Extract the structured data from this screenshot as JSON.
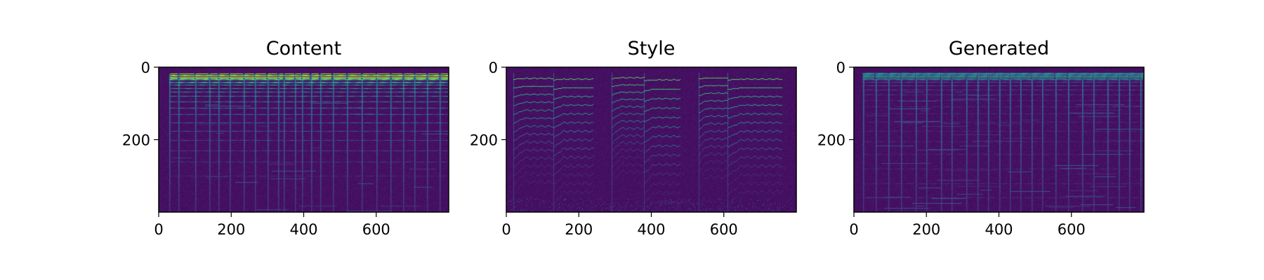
{
  "colormap": {
    "name": "viridis",
    "background": "#440154",
    "stops": [
      "#440154",
      "#472c7a",
      "#3b528b",
      "#2c728e",
      "#21918c",
      "#28ae80",
      "#5ec962",
      "#addc30",
      "#fde725"
    ]
  },
  "chart_data": [
    {
      "type": "heatmap",
      "title": "Content",
      "xlim": [
        0,
        800
      ],
      "ylim": [
        400,
        0
      ],
      "xticks": [
        0,
        200,
        400,
        600
      ],
      "yticks": [
        0,
        200
      ],
      "pattern": "broadband",
      "harmonics": [
        22,
        27,
        33,
        40,
        48,
        58,
        68,
        80,
        95,
        112,
        130,
        152,
        175,
        200,
        230,
        260,
        300
      ],
      "onsets": [
        30,
        55,
        100,
        140,
        165,
        195,
        235,
        265,
        300,
        330,
        345,
        375,
        395,
        420,
        445,
        480,
        520,
        560,
        600,
        640,
        675,
        705,
        740,
        775
      ]
    },
    {
      "type": "heatmap",
      "title": "Style",
      "xlim": [
        0,
        800
      ],
      "ylim": [
        400,
        0
      ],
      "xticks": [
        0,
        200,
        400,
        600
      ],
      "yticks": [
        0,
        200
      ],
      "pattern": "harmonic",
      "notes": [
        {
          "start": 20,
          "end": 130,
          "f0": 22
        },
        {
          "start": 130,
          "end": 240,
          "f0": 24
        },
        {
          "start": 290,
          "end": 380,
          "f0": 20
        },
        {
          "start": 380,
          "end": 480,
          "f0": 26
        },
        {
          "start": 530,
          "end": 610,
          "f0": 21
        },
        {
          "start": 610,
          "end": 760,
          "f0": 24
        }
      ]
    },
    {
      "type": "heatmap",
      "title": "Generated",
      "xlim": [
        0,
        800
      ],
      "ylim": [
        400,
        0
      ],
      "xticks": [
        0,
        200,
        400,
        600
      ],
      "yticks": [
        0,
        200
      ],
      "pattern": "mixed",
      "harmonics": [
        15,
        20,
        25,
        32,
        40,
        50,
        62,
        75,
        90,
        108,
        128,
        150,
        175,
        205,
        240,
        280,
        320,
        360
      ],
      "onsets": [
        25,
        60,
        95,
        130,
        170,
        200,
        240,
        270,
        310,
        340,
        370,
        400,
        430,
        460,
        490,
        520,
        555,
        590,
        630,
        660,
        700,
        730,
        760,
        790
      ]
    }
  ]
}
